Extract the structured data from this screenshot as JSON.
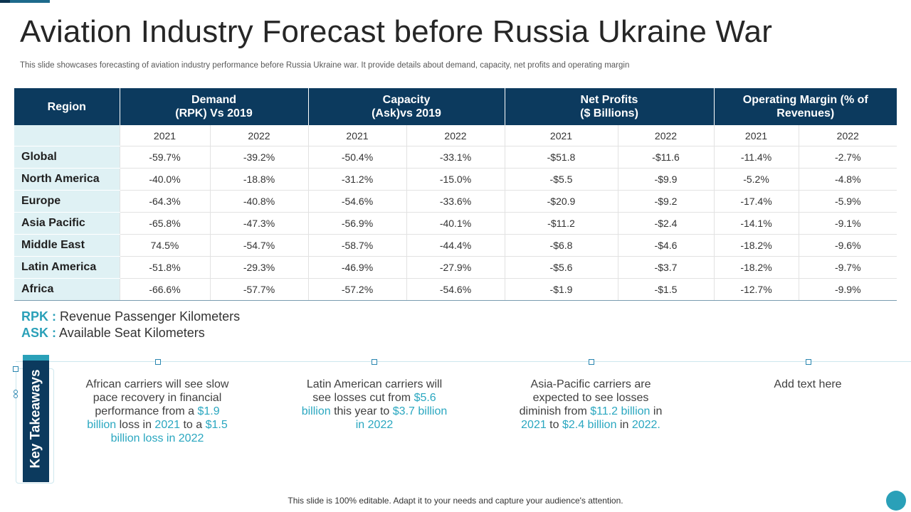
{
  "slide": {
    "title": "Aviation Industry Forecast before Russia Ukraine War",
    "subtitle": "This slide showcases forecasting of aviation industry performance before Russia Ukraine war. It provide details about demand, capacity, net profits and operating margin",
    "footer": "This slide is 100% editable. Adapt it to your needs and capture your audience's attention."
  },
  "table": {
    "headers": {
      "region": "Region",
      "demand_l1": "Demand",
      "demand_l2": "(RPK) Vs 2019",
      "capacity_l1": "Capacity",
      "capacity_l2": "(Ask)vs 2019",
      "profits_l1": "Net Profits",
      "profits_l2": "($ Billions)",
      "margin_l1": "Operating Margin (% of",
      "margin_l2": "Revenues)"
    },
    "years": [
      "2021",
      "2022",
      "2021",
      "2022",
      "2021",
      "2022",
      "2021",
      "2022"
    ],
    "rows": [
      {
        "region": "Global",
        "values": [
          "-59.7%",
          "-39.2%",
          "-50.4%",
          "-33.1%",
          "-$51.8",
          "-$11.6",
          "-11.4%",
          "-2.7%"
        ]
      },
      {
        "region": "North America",
        "values": [
          "-40.0%",
          "-18.8%",
          "-31.2%",
          "-15.0%",
          "-$5.5",
          "-$9.9",
          "-5.2%",
          "-4.8%"
        ]
      },
      {
        "region": "Europe",
        "values": [
          "-64.3%",
          "-40.8%",
          "-54.6%",
          "-33.6%",
          "-$20.9",
          "-$9.2",
          "-17.4%",
          "-5.9%"
        ]
      },
      {
        "region": "Asia Pacific",
        "values": [
          "-65.8%",
          "-47.3%",
          "-56.9%",
          "-40.1%",
          "-$11.2",
          "-$2.4",
          "-14.1%",
          "-9.1%"
        ]
      },
      {
        "region": "Middle East",
        "values": [
          "74.5%",
          "-54.7%",
          "-58.7%",
          "-44.4%",
          "-$6.8",
          "-$4.6",
          "-18.2%",
          "-9.6%"
        ]
      },
      {
        "region": "Latin America",
        "values": [
          "-51.8%",
          "-29.3%",
          "-46.9%",
          "-27.9%",
          "-$5.6",
          "-$3.7",
          "-18.2%",
          "-9.7%"
        ]
      },
      {
        "region": "Africa",
        "values": [
          "-66.6%",
          "-57.7%",
          "-57.2%",
          "-54.6%",
          "-$1.9",
          "-$1.5",
          "-12.7%",
          "-9.9%"
        ]
      }
    ]
  },
  "abbreviations": {
    "rpk_key": "RPK :",
    "rpk_text": "Revenue Passenger Kilometers",
    "ask_key": "ASK :",
    "ask_text": "Available Seat Kilometers"
  },
  "key_takeaways": {
    "label": "Key Takeaways",
    "africa": {
      "t1": "African carriers will see slow pace recovery  in financial performance  from a ",
      "h1": "$1.9 billion",
      "t2": " loss in ",
      "h2": "2021",
      "t3": " to a ",
      "h3": "$1.5 billion loss in 2022"
    },
    "latam": {
      "t1": "Latin American carriers will see losses cut from ",
      "h1": "$5.6 billion",
      "t2": " this  year to ",
      "h2": "$3.7 billion in 2022"
    },
    "apac": {
      "t1": "Asia-Pacific carriers are expected to see losses diminish from ",
      "h1": "$11.2 billion",
      "t2": " in ",
      "h2": "2021",
      "t3": " to ",
      "h3": "$2.4 billion",
      "t4": " in ",
      "h4": "2022."
    },
    "placeholder": "Add text here"
  },
  "colors": {
    "header_navy": "#0c3a5e",
    "accent_teal": "#2aa0b8",
    "region_fill": "#dff1f4"
  }
}
